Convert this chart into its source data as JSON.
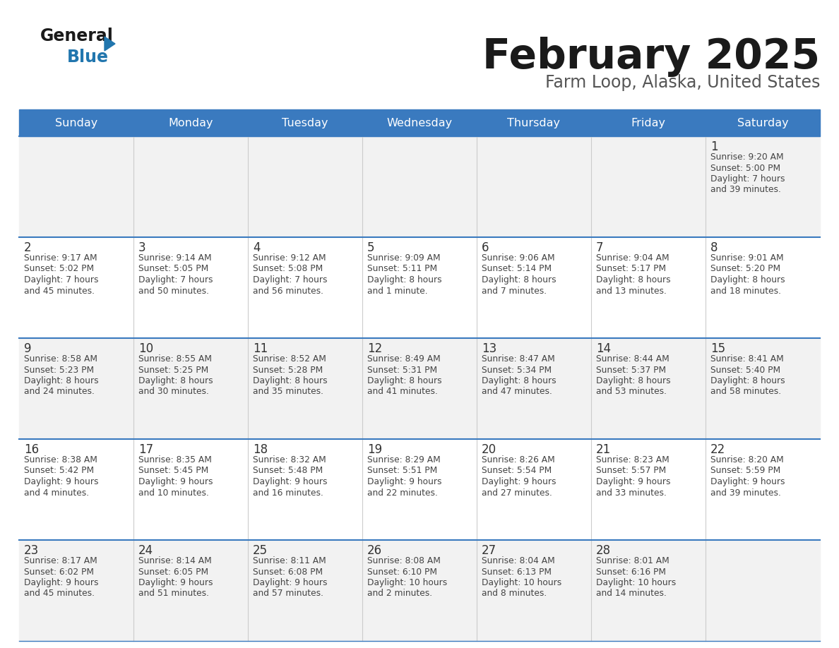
{
  "title": "February 2025",
  "subtitle": "Farm Loop, Alaska, United States",
  "header_bg": "#3a7abf",
  "header_text_color": "#ffffff",
  "cell_bg_odd": "#f2f2f2",
  "cell_bg_even": "#ffffff",
  "day_text_color": "#333333",
  "info_text_color": "#444444",
  "divider_color": "#3a7abf",
  "grid_line_color": "#3a7abf",
  "days_of_week": [
    "Sunday",
    "Monday",
    "Tuesday",
    "Wednesday",
    "Thursday",
    "Friday",
    "Saturday"
  ],
  "calendar_data": [
    [
      {
        "day": null,
        "info": null
      },
      {
        "day": null,
        "info": null
      },
      {
        "day": null,
        "info": null
      },
      {
        "day": null,
        "info": null
      },
      {
        "day": null,
        "info": null
      },
      {
        "day": null,
        "info": null
      },
      {
        "day": "1",
        "info": "Sunrise: 9:20 AM\nSunset: 5:00 PM\nDaylight: 7 hours\nand 39 minutes."
      }
    ],
    [
      {
        "day": "2",
        "info": "Sunrise: 9:17 AM\nSunset: 5:02 PM\nDaylight: 7 hours\nand 45 minutes."
      },
      {
        "day": "3",
        "info": "Sunrise: 9:14 AM\nSunset: 5:05 PM\nDaylight: 7 hours\nand 50 minutes."
      },
      {
        "day": "4",
        "info": "Sunrise: 9:12 AM\nSunset: 5:08 PM\nDaylight: 7 hours\nand 56 minutes."
      },
      {
        "day": "5",
        "info": "Sunrise: 9:09 AM\nSunset: 5:11 PM\nDaylight: 8 hours\nand 1 minute."
      },
      {
        "day": "6",
        "info": "Sunrise: 9:06 AM\nSunset: 5:14 PM\nDaylight: 8 hours\nand 7 minutes."
      },
      {
        "day": "7",
        "info": "Sunrise: 9:04 AM\nSunset: 5:17 PM\nDaylight: 8 hours\nand 13 minutes."
      },
      {
        "day": "8",
        "info": "Sunrise: 9:01 AM\nSunset: 5:20 PM\nDaylight: 8 hours\nand 18 minutes."
      }
    ],
    [
      {
        "day": "9",
        "info": "Sunrise: 8:58 AM\nSunset: 5:23 PM\nDaylight: 8 hours\nand 24 minutes."
      },
      {
        "day": "10",
        "info": "Sunrise: 8:55 AM\nSunset: 5:25 PM\nDaylight: 8 hours\nand 30 minutes."
      },
      {
        "day": "11",
        "info": "Sunrise: 8:52 AM\nSunset: 5:28 PM\nDaylight: 8 hours\nand 35 minutes."
      },
      {
        "day": "12",
        "info": "Sunrise: 8:49 AM\nSunset: 5:31 PM\nDaylight: 8 hours\nand 41 minutes."
      },
      {
        "day": "13",
        "info": "Sunrise: 8:47 AM\nSunset: 5:34 PM\nDaylight: 8 hours\nand 47 minutes."
      },
      {
        "day": "14",
        "info": "Sunrise: 8:44 AM\nSunset: 5:37 PM\nDaylight: 8 hours\nand 53 minutes."
      },
      {
        "day": "15",
        "info": "Sunrise: 8:41 AM\nSunset: 5:40 PM\nDaylight: 8 hours\nand 58 minutes."
      }
    ],
    [
      {
        "day": "16",
        "info": "Sunrise: 8:38 AM\nSunset: 5:42 PM\nDaylight: 9 hours\nand 4 minutes."
      },
      {
        "day": "17",
        "info": "Sunrise: 8:35 AM\nSunset: 5:45 PM\nDaylight: 9 hours\nand 10 minutes."
      },
      {
        "day": "18",
        "info": "Sunrise: 8:32 AM\nSunset: 5:48 PM\nDaylight: 9 hours\nand 16 minutes."
      },
      {
        "day": "19",
        "info": "Sunrise: 8:29 AM\nSunset: 5:51 PM\nDaylight: 9 hours\nand 22 minutes."
      },
      {
        "day": "20",
        "info": "Sunrise: 8:26 AM\nSunset: 5:54 PM\nDaylight: 9 hours\nand 27 minutes."
      },
      {
        "day": "21",
        "info": "Sunrise: 8:23 AM\nSunset: 5:57 PM\nDaylight: 9 hours\nand 33 minutes."
      },
      {
        "day": "22",
        "info": "Sunrise: 8:20 AM\nSunset: 5:59 PM\nDaylight: 9 hours\nand 39 minutes."
      }
    ],
    [
      {
        "day": "23",
        "info": "Sunrise: 8:17 AM\nSunset: 6:02 PM\nDaylight: 9 hours\nand 45 minutes."
      },
      {
        "day": "24",
        "info": "Sunrise: 8:14 AM\nSunset: 6:05 PM\nDaylight: 9 hours\nand 51 minutes."
      },
      {
        "day": "25",
        "info": "Sunrise: 8:11 AM\nSunset: 6:08 PM\nDaylight: 9 hours\nand 57 minutes."
      },
      {
        "day": "26",
        "info": "Sunrise: 8:08 AM\nSunset: 6:10 PM\nDaylight: 10 hours\nand 2 minutes."
      },
      {
        "day": "27",
        "info": "Sunrise: 8:04 AM\nSunset: 6:13 PM\nDaylight: 10 hours\nand 8 minutes."
      },
      {
        "day": "28",
        "info": "Sunrise: 8:01 AM\nSunset: 6:16 PM\nDaylight: 10 hours\nand 14 minutes."
      },
      {
        "day": null,
        "info": null
      }
    ]
  ]
}
